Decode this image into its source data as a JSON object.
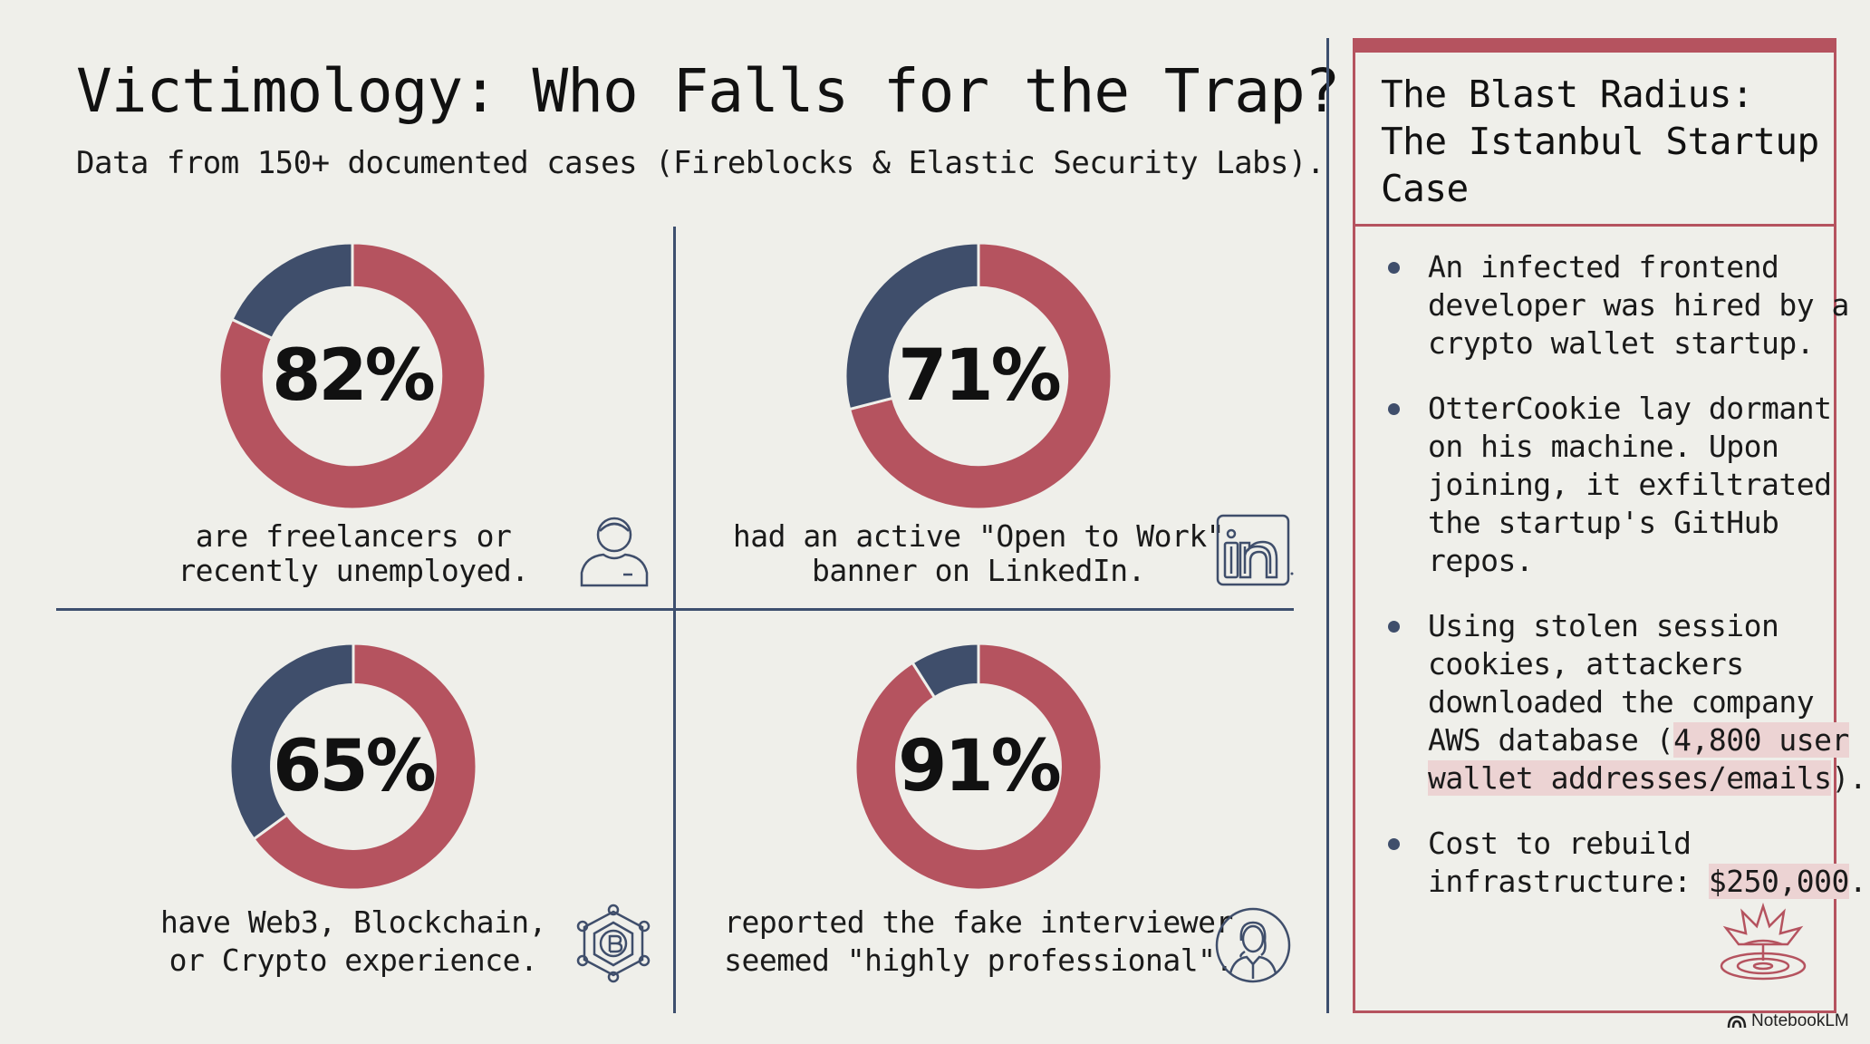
{
  "header": {
    "title": "Victimology: Who Falls for the Trap?",
    "subtitle": "Data from 150+ documented cases (Fireblocks & Elastic Security Labs)."
  },
  "colors": {
    "primary": "#b5535f",
    "secondary": "#3f4e6b",
    "background": "#efefea"
  },
  "chart_data": [
    {
      "type": "pie",
      "label": "82%",
      "values": [
        82,
        18
      ],
      "caption_lines": [
        "are freelancers or",
        "recently unemployed."
      ],
      "icon": "person-icon"
    },
    {
      "type": "pie",
      "label": "71%",
      "values": [
        71,
        29
      ],
      "caption_lines": [
        "had an active \"Open to Work\"",
        "banner on LinkedIn."
      ],
      "icon": "linkedin-icon"
    },
    {
      "type": "pie",
      "label": "65%",
      "values": [
        65,
        35
      ],
      "caption_lines": [
        "have Web3, Blockchain,",
        "or Crypto experience."
      ],
      "icon": "bitcoin-network-icon"
    },
    {
      "type": "pie",
      "label": "91%",
      "values": [
        91,
        9
      ],
      "caption_lines": [
        "reported the fake interviewer",
        "seemed \"highly professional\"."
      ],
      "icon": "interviewer-icon"
    }
  ],
  "panel": {
    "title_lines": [
      "The Blast Radius:",
      "The Istanbul Startup",
      "Case"
    ],
    "bullets": [
      {
        "lines": [
          [
            "An infected frontend"
          ],
          [
            "developer was hired by a"
          ],
          [
            "crypto wallet startup."
          ]
        ]
      },
      {
        "lines": [
          [
            "OtterCookie lay dormant"
          ],
          [
            "on his machine. Upon"
          ],
          [
            "joining, it exfiltrated"
          ],
          [
            "the startup's GitHub"
          ],
          [
            "repos."
          ]
        ]
      },
      {
        "lines": [
          [
            "Using stolen session"
          ],
          [
            "cookies, attackers"
          ],
          [
            "downloaded the company"
          ],
          [
            "AWS database (",
            "4,800 user"
          ],
          [
            "wallet addresses/emails",
            ")."
          ]
        ]
      },
      {
        "lines": [
          [
            "Cost to rebuild"
          ],
          [
            "infrastructure: ",
            "$250,000",
            "."
          ]
        ]
      }
    ],
    "icon": "explosion-icon"
  },
  "brand": "NotebookLM"
}
